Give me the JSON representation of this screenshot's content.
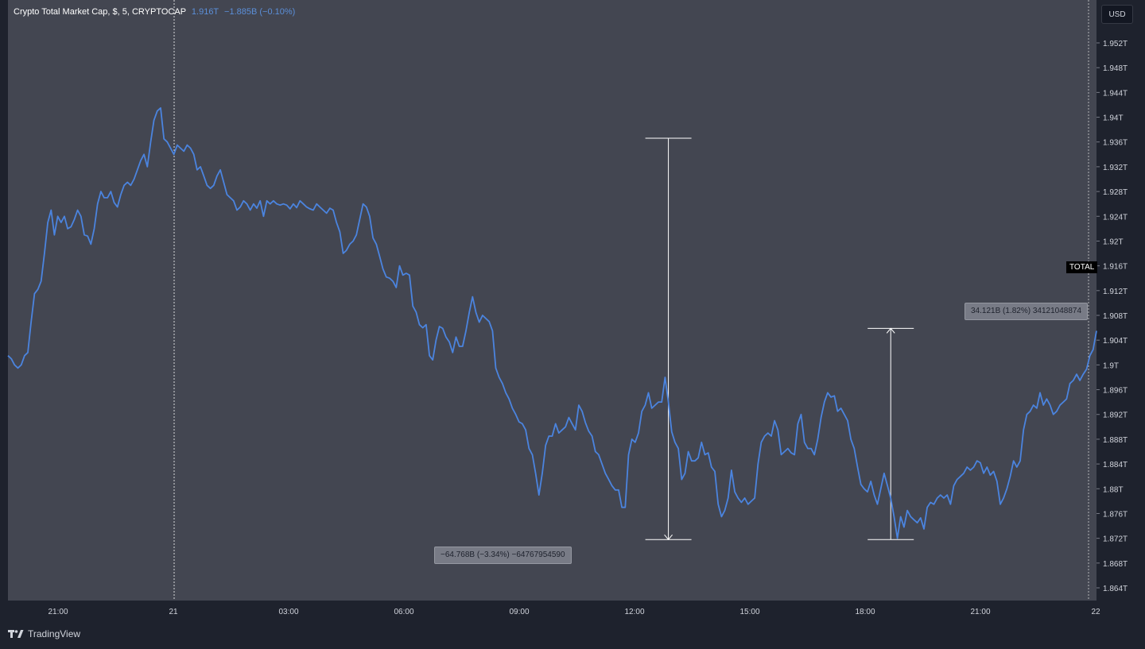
{
  "header": {
    "symbol": "Crypto Total Market Cap, $, 5, CRYPTOCAP",
    "last_price": "1.916T",
    "change": "−1.885B (−0.10%)"
  },
  "currency_button": "USD",
  "price_tag": "TOTAL",
  "branding": "TradingView",
  "colors": {
    "line": "#4b84df",
    "pane_background": "#434651",
    "app_background": "#1e222d"
  },
  "measurements": [
    {
      "label": "−64.768B (−3.34%) −64767954590",
      "from": 1.9366,
      "to": 1.8718,
      "x_index": 199
    },
    {
      "label": "34.121B (1.82%) 34121048874",
      "from": 1.8718,
      "to": 1.9059,
      "x_index": 266
    }
  ],
  "chart_data": {
    "type": "line",
    "title": "Crypto Total Market Cap, $, 5, CRYPTOCAP",
    "ylabel": "USD",
    "ylim": [
      1.862,
      1.955
    ],
    "y_ticks": [
      "1.952T",
      "1.948T",
      "1.944T",
      "1.94T",
      "1.936T",
      "1.932T",
      "1.928T",
      "1.924T",
      "1.92T",
      "1.916T",
      "1.912T",
      "1.908T",
      "1.904T",
      "1.9T",
      "1.896T",
      "1.892T",
      "1.888T",
      "1.884T",
      "1.88T",
      "1.876T",
      "1.872T",
      "1.868T",
      "1.864T"
    ],
    "x_ticks": [
      "21:00",
      "21",
      "03:00",
      "06:00",
      "09:00",
      "12:00",
      "15:00",
      "18:00",
      "21:00",
      "22"
    ],
    "grid": false,
    "crosshair_at": "21",
    "series": [
      {
        "values": [
          1.9015,
          1.901,
          1.9,
          1.8995,
          1.9,
          1.9015,
          1.902,
          1.907,
          1.9115,
          1.9122,
          1.9135,
          1.918,
          1.923,
          1.925,
          1.921,
          1.924,
          1.923,
          1.924,
          1.922,
          1.9223,
          1.9235,
          1.925,
          1.924,
          1.921,
          1.9208,
          1.9195,
          1.922,
          1.926,
          1.928,
          1.927,
          1.927,
          1.928,
          1.9262,
          1.9255,
          1.9275,
          1.929,
          1.9295,
          1.929,
          1.93,
          1.9315,
          1.933,
          1.934,
          1.932,
          1.936,
          1.9395,
          1.941,
          1.9415,
          1.9365,
          1.936,
          1.935,
          1.934,
          1.9355,
          1.935,
          1.9345,
          1.9355,
          1.935,
          1.934,
          1.9315,
          1.932,
          1.9305,
          1.929,
          1.9285,
          1.929,
          1.9305,
          1.9315,
          1.9295,
          1.9275,
          1.927,
          1.9265,
          1.925,
          1.9255,
          1.9265,
          1.926,
          1.925,
          1.926,
          1.9253,
          1.9265,
          1.924,
          1.9265,
          1.926,
          1.9265,
          1.926,
          1.9258,
          1.926,
          1.9258,
          1.9252,
          1.926,
          1.9254,
          1.9265,
          1.926,
          1.9255,
          1.9252,
          1.925,
          1.926,
          1.9255,
          1.925,
          1.9245,
          1.9253,
          1.925,
          1.923,
          1.9215,
          1.918,
          1.9185,
          1.9195,
          1.92,
          1.921,
          1.9235,
          1.926,
          1.9255,
          1.924,
          1.9205,
          1.9195,
          1.9175,
          1.9155,
          1.9142,
          1.914,
          1.9135,
          1.9125,
          1.916,
          1.9145,
          1.9148,
          1.9145,
          1.9095,
          1.9085,
          1.9065,
          1.906,
          1.9065,
          1.9015,
          1.9008,
          1.904,
          1.9062,
          1.9059,
          1.9045,
          1.9037,
          1.902,
          1.9045,
          1.903,
          1.903,
          1.9055,
          1.9085,
          1.911,
          1.9085,
          1.9069,
          1.908,
          1.9075,
          1.907,
          1.9055,
          1.8995,
          1.898,
          1.897,
          1.8955,
          1.8945,
          1.893,
          1.892,
          1.8908,
          1.8905,
          1.8895,
          1.8865,
          1.8855,
          1.8825,
          1.879,
          1.8825,
          1.887,
          1.8885,
          1.8885,
          1.8905,
          1.889,
          1.8895,
          1.89,
          1.8915,
          1.8905,
          1.8895,
          1.8935,
          1.8925,
          1.8907,
          1.8893,
          1.8885,
          1.886,
          1.8855,
          1.884,
          1.8825,
          1.8815,
          1.8805,
          1.8798,
          1.8798,
          1.877,
          1.877,
          1.8855,
          1.888,
          1.8875,
          1.889,
          1.8925,
          1.8935,
          1.8955,
          1.893,
          1.8935,
          1.894,
          1.894,
          1.898,
          1.894,
          1.8892,
          1.8875,
          1.8865,
          1.8815,
          1.8825,
          1.886,
          1.8845,
          1.8845,
          1.885,
          1.8875,
          1.8855,
          1.8858,
          1.8835,
          1.8828,
          1.8775,
          1.8755,
          1.8765,
          1.8785,
          1.883,
          1.8795,
          1.8785,
          1.8778,
          1.8785,
          1.8775,
          1.878,
          1.8785,
          1.884,
          1.8875,
          1.8885,
          1.889,
          1.8885,
          1.891,
          1.8895,
          1.8855,
          1.886,
          1.8865,
          1.8858,
          1.8855,
          1.8905,
          1.892,
          1.8875,
          1.8865,
          1.8865,
          1.8855,
          1.888,
          1.8915,
          1.894,
          1.8955,
          1.8948,
          1.895,
          1.8925,
          1.893,
          1.892,
          1.891,
          1.888,
          1.8865,
          1.8835,
          1.8807,
          1.88,
          1.8795,
          1.8812,
          1.879,
          1.8775,
          1.88,
          1.8825,
          1.8805,
          1.8785,
          1.8755,
          1.872,
          1.8755,
          1.8738,
          1.8765,
          1.8755,
          1.875,
          1.8745,
          1.8753,
          1.8735,
          1.877,
          1.8778,
          1.8775,
          1.8785,
          1.879,
          1.8785,
          1.879,
          1.8775,
          1.8805,
          1.8815,
          1.882,
          1.8825,
          1.8835,
          1.883,
          1.8835,
          1.8845,
          1.8842,
          1.8825,
          1.8835,
          1.8822,
          1.8828,
          1.8812,
          1.8775,
          1.8785,
          1.88,
          1.882,
          1.8845,
          1.8835,
          1.8845,
          1.8895,
          1.892,
          1.8925,
          1.8935,
          1.893,
          1.8955,
          1.8935,
          1.8945,
          1.8935,
          1.892,
          1.8925,
          1.8935,
          1.894,
          1.8945,
          1.897,
          1.8975,
          1.8985,
          1.8975,
          1.8985,
          1.8993,
          1.9015,
          1.9025,
          1.9055
        ]
      }
    ]
  }
}
